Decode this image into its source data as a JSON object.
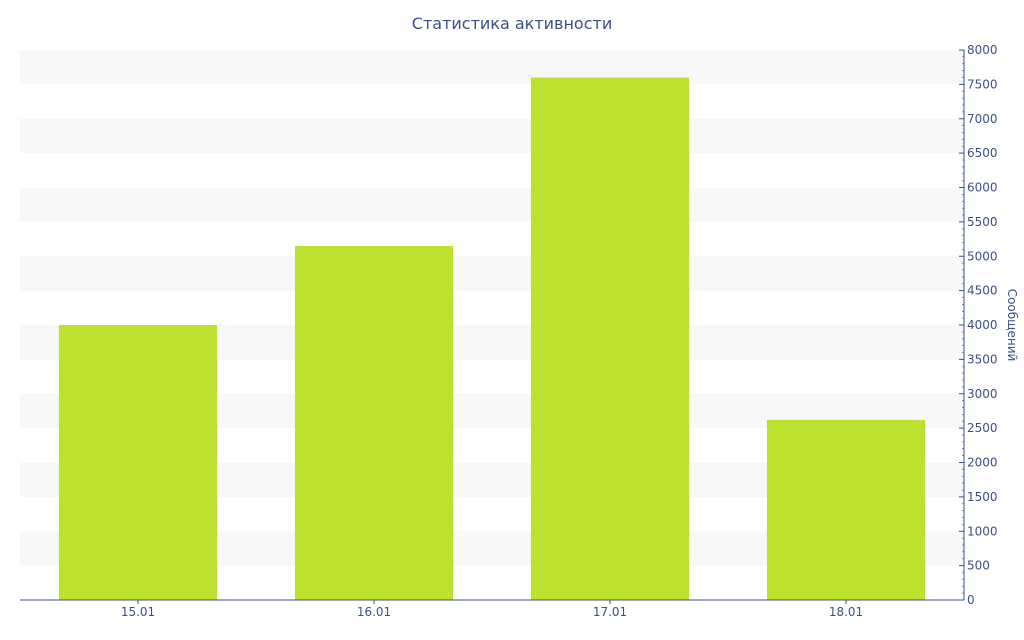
{
  "chart_data": {
    "type": "bar",
    "title": "Статистика активности",
    "xlabel": "",
    "ylabel": "Сообщений",
    "categories": [
      "15.01",
      "16.01",
      "17.01",
      "18.01"
    ],
    "values": [
      4000,
      5150,
      7600,
      2620
    ],
    "ylim": [
      0,
      8000
    ],
    "y_ticks": [
      "0",
      "500",
      "1000",
      "1500",
      "2000",
      "2500",
      "3000",
      "3500",
      "4000",
      "4500",
      "5000",
      "5500",
      "6000",
      "6500",
      "7000",
      "7500",
      "8000"
    ],
    "y_axis_side": "right",
    "grid": "alternating horizontal bands",
    "colors": {
      "bar": "#bce22f",
      "band": "#f8f8f8",
      "axis": "#3d4f8a",
      "text": "#3d4f8a"
    }
  }
}
